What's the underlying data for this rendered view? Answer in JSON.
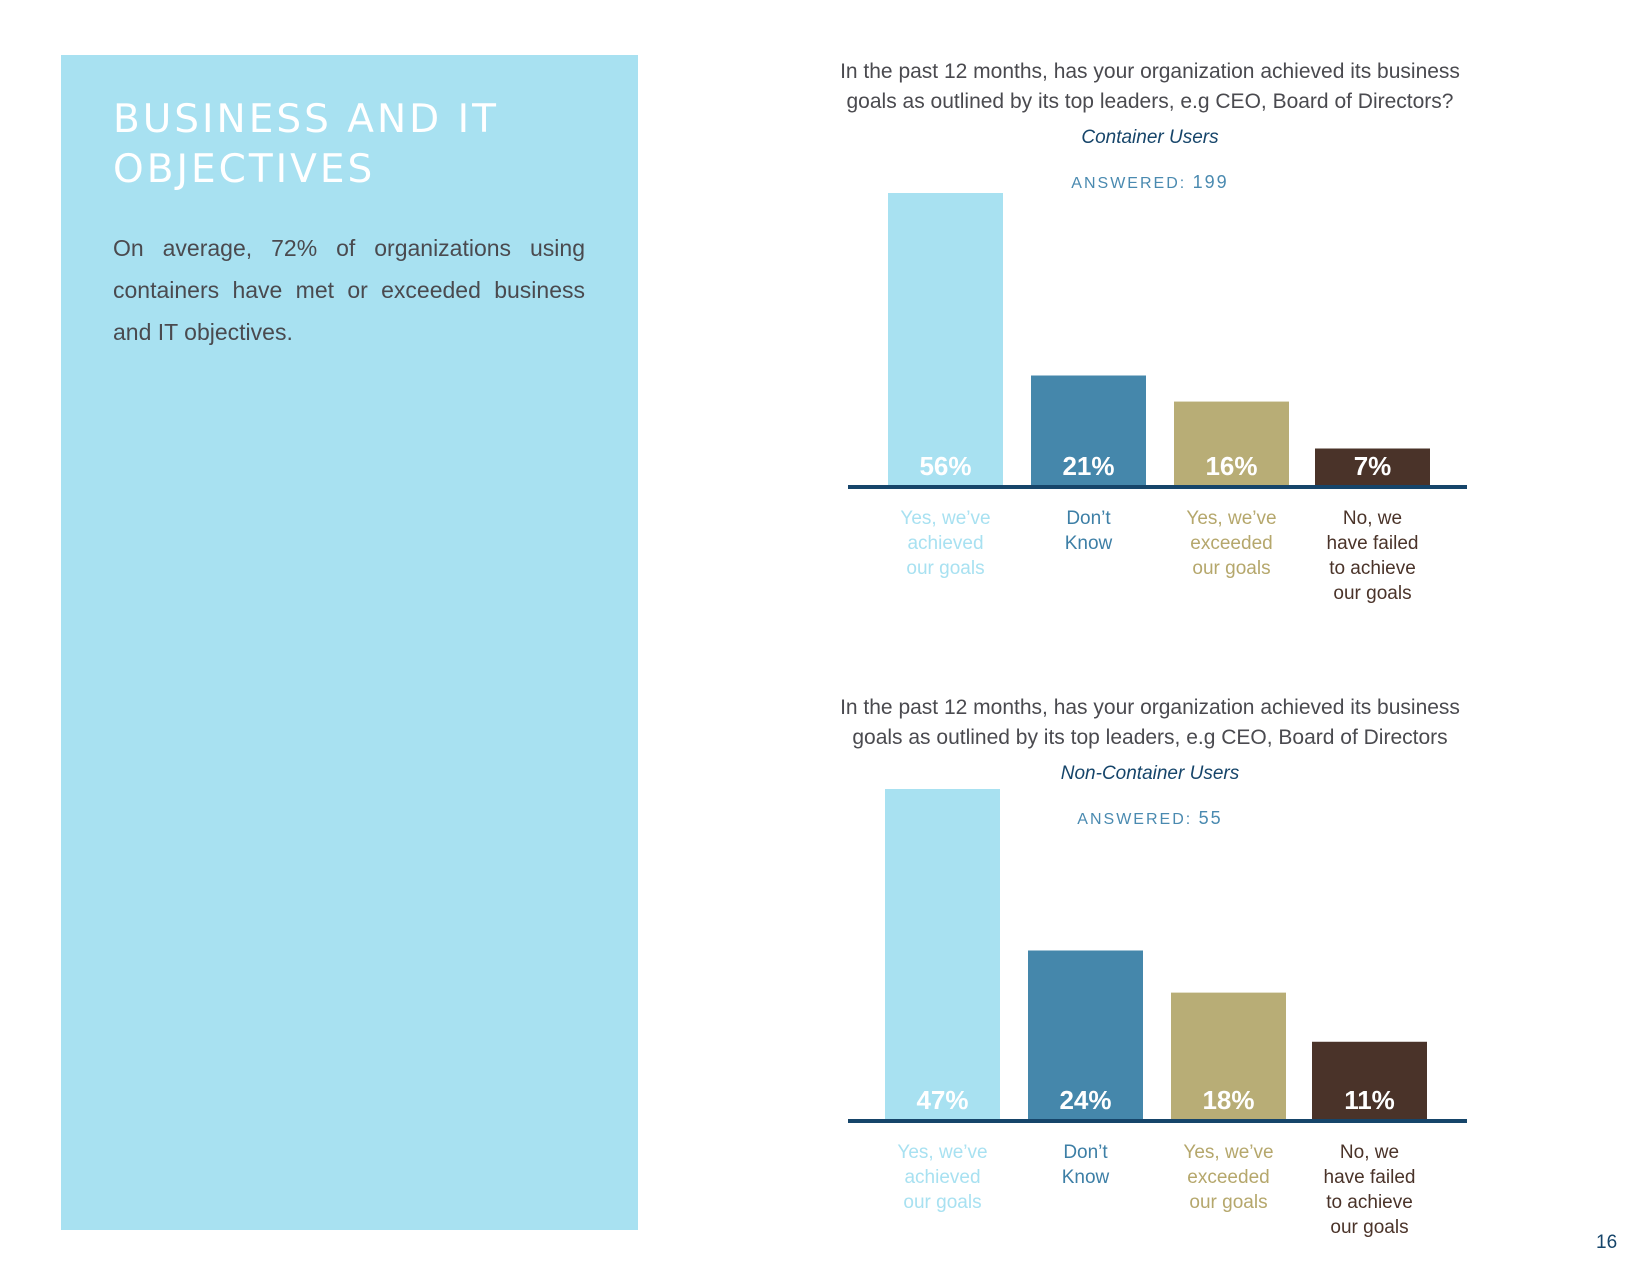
{
  "panel": {
    "title": "BUSINESS AND IT OBJECTIVES",
    "body": "On average, 72% of organizations using containers have met or exceeded business and IT objectives."
  },
  "colors": {
    "panel_bg": "#a8e1f1",
    "baseline": "#16456a",
    "bar_colors": [
      "#a8e1f1",
      "#4587ab",
      "#b8ad76",
      "#4a3329"
    ],
    "label_colors": [
      "#a8e1f1",
      "#3d7fa6",
      "#b5a76c",
      "#4a3329"
    ]
  },
  "page_number": "16",
  "chart_data": [
    {
      "type": "bar",
      "title": "In the past 12 months, has your organization achieved its business goals as outlined by its top leaders, e.g CEO, Board of Directors?",
      "subtitle": "Container Users",
      "answered_label": "ANSWERED:",
      "answered_count": "199",
      "categories": [
        "Yes, we've achieved our goals",
        "Don't Know",
        "Yes, we've exceeded our goals",
        "No, we have failed to achieve our goals"
      ],
      "category_lines": [
        [
          "Yes, we’ve",
          "achieved",
          "our goals"
        ],
        [
          "Don’t",
          "Know"
        ],
        [
          "Yes, we’ve",
          "exceeded",
          "our goals"
        ],
        [
          "No, we",
          "have failed",
          "to achieve",
          "our goals"
        ]
      ],
      "values": [
        56,
        21,
        16,
        7
      ],
      "value_labels": [
        "56%",
        "21%",
        "16%",
        "7%"
      ],
      "ylim": [
        0,
        56
      ],
      "xlabel": "",
      "ylabel": "",
      "grid": false
    },
    {
      "type": "bar",
      "title": "In the past 12 months, has your organization achieved its business goals as outlined by its top leaders, e.g CEO, Board of Directors",
      "subtitle": "Non-Container Users",
      "answered_label": "ANSWERED:",
      "answered_count": "55",
      "categories": [
        "Yes, we've achieved our goals",
        "Don't Know",
        "Yes, we've exceeded our goals",
        "No, we have failed to achieve our goals"
      ],
      "category_lines": [
        [
          "Yes, we’ve",
          "achieved",
          "our goals"
        ],
        [
          "Don’t",
          "Know"
        ],
        [
          "Yes, we’ve",
          "exceeded",
          "our goals"
        ],
        [
          "No, we",
          "have failed",
          "to achieve",
          "our goals"
        ]
      ],
      "values": [
        47,
        24,
        18,
        11
      ],
      "value_labels": [
        "47%",
        "24%",
        "18%",
        "11%"
      ],
      "ylim": [
        0,
        47
      ],
      "xlabel": "",
      "ylabel": "",
      "grid": false
    }
  ]
}
